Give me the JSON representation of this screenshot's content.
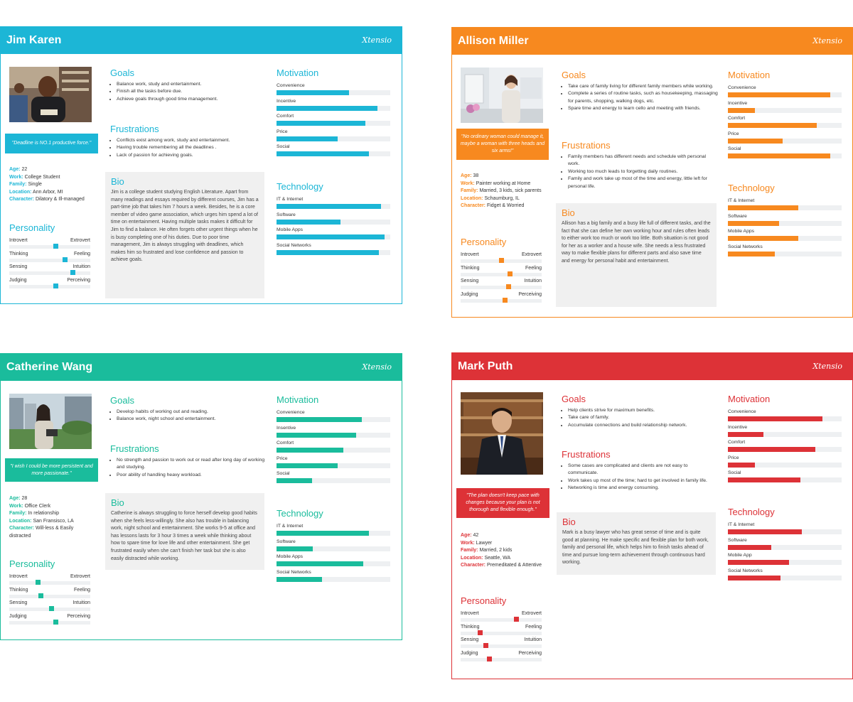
{
  "personas": [
    {
      "name": "Jim Karen",
      "brand": "Xtensio",
      "color": "#1cb6d6",
      "quote": "\"Deadline is NO.1 productive force.\"",
      "info": [
        {
          "k": "Age:",
          "v": " 22"
        },
        {
          "k": "Work:",
          "v": " College Student"
        },
        {
          "k": "Family:",
          "v": " Single"
        },
        {
          "k": "Location:",
          "v": " Ann Arbor, MI"
        },
        {
          "k": "Character:",
          "v": " Dilatory & Ill-managed"
        }
      ],
      "personality_title": "Personality",
      "personality": [
        {
          "left": "Introvert",
          "right": "Extrovert",
          "value": 0.58
        },
        {
          "left": "Thinking",
          "right": "Feeling",
          "value": 0.7
        },
        {
          "left": "Sensing",
          "right": "Intuition",
          "value": 0.8
        },
        {
          "left": "Judging",
          "right": "Perceiving",
          "value": 0.58
        }
      ],
      "goals_title": "Goals",
      "goals": [
        "Balance work, study and entertainment.",
        "Finish all the tasks before due.",
        "Achieve goals through good time management."
      ],
      "frustrations_title": "Frustrations",
      "frustrations": [
        "Conflicts exist among work, study and entertainment.",
        "Having trouble remembering all the deadlines .",
        "Lack of passion for achieving goals."
      ],
      "bio_title": "Bio",
      "bio": "Jim is a college student studying English Literature. Apart from many readings and essays required by different courses, Jim has a part-time job that takes him 7 hours a week. Besides, he is a core member of video game association, which urges him spend a lot of time on entertainment. Having multiple tasks makes it difficult for Jim to find a balance. He often forgets other urgent things when he is busy completing one of his duties. Due to poor time management, Jim is always struggling with deadlines, which makes him so frustrated and lose confidence and passion to achieve goals.",
      "motivation_title": "Motivation",
      "motivation": [
        {
          "label": "Convenience",
          "value": 0.64
        },
        {
          "label": "Incentive",
          "value": 0.89
        },
        {
          "label": "Comfort",
          "value": 0.78
        },
        {
          "label": "Price",
          "value": 0.54
        },
        {
          "label": "Social",
          "value": 0.81
        }
      ],
      "technology_title": "Technology",
      "technology": [
        {
          "label": "IT & Internet",
          "value": 0.92
        },
        {
          "label": "Software",
          "value": 0.56
        },
        {
          "label": "Mobile Apps",
          "value": 0.95
        },
        {
          "label": "Social Networks",
          "value": 0.9
        }
      ]
    },
    {
      "name": "Allison Miller",
      "brand": "Xtensio",
      "color": "#f7891f",
      "quote": "\"No ordinary woman could manage it, maybe a woman with three heads and six arms!\"",
      "info": [
        {
          "k": "Age:",
          "v": " 38"
        },
        {
          "k": "Work:",
          "v": " Painter working at Home"
        },
        {
          "k": "Family:",
          "v": " Married, 3 kids, sick parents"
        },
        {
          "k": "Location:",
          "v": " Schaumburg, IL"
        },
        {
          "k": "Character:",
          "v": " Fidget & Worried"
        }
      ],
      "personality_title": "Personality",
      "personality": [
        {
          "left": "Introvert",
          "right": "Extrovert",
          "value": 0.5
        },
        {
          "left": "Thinking",
          "right": "Feeling",
          "value": 0.62
        },
        {
          "left": "Sensing",
          "right": "Intuition",
          "value": 0.6
        },
        {
          "left": "Judging",
          "right": "Perceiving",
          "value": 0.55
        }
      ],
      "goals_title": "Goals",
      "goals": [
        "Take care of family living for different family members while working.",
        "Complete a series of routine tasks, such as housekeeping, massaging for parents, shopping, walking dogs, etc.",
        "Spare time and energy to learn cello and meeting with friends."
      ],
      "frustrations_title": "Frustrations",
      "frustrations": [
        "Family members has different needs and schedule with personal work.",
        "Working too much leads to forgetting daily routines.",
        "Family and work take up most of the time and energy, little left for personal life."
      ],
      "bio_title": "Bio",
      "bio": "Allison has a big family and a busy life full of different tasks, and the fact that she can define her own working hour and rules often leads to either work too much or work too little. Both situation is not good for her as a worker and a house wife. She needs a less frustrated way to make flexible plans for different parts and also save time and energy for personal habit and entertainment.",
      "motivation_title": "Motivation",
      "motivation": [
        {
          "label": "Convenience",
          "value": 0.9
        },
        {
          "label": "Incentive",
          "value": 0.24
        },
        {
          "label": "Comfort",
          "value": 0.78
        },
        {
          "label": "Price",
          "value": 0.48
        },
        {
          "label": "Social",
          "value": 0.9
        }
      ],
      "technology_title": "Technology",
      "technology": [
        {
          "label": "IT & Internet",
          "value": 0.62
        },
        {
          "label": "Software",
          "value": 0.45
        },
        {
          "label": "Mobile Apps",
          "value": 0.62
        },
        {
          "label": "Social Networks",
          "value": 0.41
        }
      ]
    },
    {
      "name": "Catherine Wang",
      "brand": "Xtensio",
      "color": "#1abc9c",
      "quote": "\"I wish I could be more persistent and more passionate.\"",
      "info": [
        {
          "k": "Age:",
          "v": " 28"
        },
        {
          "k": "Work:",
          "v": " Office Clerk"
        },
        {
          "k": "Family:",
          "v": " In relationship"
        },
        {
          "k": "Location:",
          "v": " San Fransisco, LA"
        },
        {
          "k": "Character:",
          "v": " Will-less & Easily distracted"
        }
      ],
      "personality_title": "Personality",
      "personality": [
        {
          "left": "Introvert",
          "right": "Extrovert",
          "value": 0.35
        },
        {
          "left": "Thinking",
          "right": "Feeling",
          "value": 0.38
        },
        {
          "left": "Sensing",
          "right": "Intuition",
          "value": 0.52
        },
        {
          "left": "Judging",
          "right": "Perceiving",
          "value": 0.58
        }
      ],
      "goals_title": "Goals",
      "goals": [
        "Develop habits of working out and reading.",
        "Balance work, night school and entertainment."
      ],
      "frustrations_title": "Frustrations",
      "frustrations": [
        "No strength and passion to work out or read after long day of working and studying.",
        "Poor ability of handling heavy workload."
      ],
      "bio_title": "Bio",
      "bio": "Catherine is always struggling to force herself develop good habits when she feels less-willingly. She also has trouble in balancing work, night school and entertainment. She works 9-5 at office and has lessons lasts for 3 hour 3 times a week while thinking about how to spare time for love life and other entertainment. She get frustrated easily when she can't finish her task but she is also easily distracted while working.",
      "motivation_title": "Motivation",
      "motivation": [
        {
          "label": "Convenience",
          "value": 0.75
        },
        {
          "label": "Insentive",
          "value": 0.7
        },
        {
          "label": "Comfort",
          "value": 0.59
        },
        {
          "label": "Price",
          "value": 0.54
        },
        {
          "label": "Social",
          "value": 0.31
        }
      ],
      "technology_title": "Technology",
      "technology": [
        {
          "label": "IT & Internet",
          "value": 0.81
        },
        {
          "label": "Software",
          "value": 0.32
        },
        {
          "label": "Mobile Apps",
          "value": 0.76
        },
        {
          "label": "Social Networks",
          "value": 0.4
        }
      ]
    },
    {
      "name": "Mark Puth",
      "brand": "Xtensio",
      "color": "#dd3237",
      "quote": "\"The plan doesn't keep pace with changes because your plan is not thorough and flexible enough.\"",
      "info": [
        {
          "k": "Age:",
          "v": " 42"
        },
        {
          "k": "Work:",
          "v": " Lawyer"
        },
        {
          "k": "Family:",
          "v": " Married, 2 kids"
        },
        {
          "k": "Location:",
          "v": " Seattle, WA"
        },
        {
          "k": "Character:",
          "v": " Premeditated & Attentive"
        }
      ],
      "personality_title": "Personality",
      "personality": [
        {
          "left": "Introvert",
          "right": "Extrovert",
          "value": 0.7
        },
        {
          "left": "Thinking",
          "right": "Feeling",
          "value": 0.22
        },
        {
          "left": "Sensing",
          "right": "Intuition",
          "value": 0.3
        },
        {
          "left": "Judging",
          "right": "Perceiving",
          "value": 0.35
        }
      ],
      "goals_title": "Goals",
      "goals": [
        "Help clients strive for maximum benefits.",
        "Take care of family.",
        "Accumulate connections and build relationship network."
      ],
      "frustrations_title": "Frustrations",
      "frustrations": [
        "Some cases are complicated and clients are not easy to communicate.",
        "Work takes up most of the time; hard to get involved in family life.",
        "Networking is time and energy consuming."
      ],
      "bio_title": "Bio",
      "bio": "Mark is a busy lawyer who has great sense of time and is quite good at planning. He make specific and flexible plan for both work, family and personal life, which helps him to finish tasks ahead of time and pursue long-term achievement through continuous hard working.",
      "motivation_title": "Motivation",
      "motivation": [
        {
          "label": "Convenience",
          "value": 0.83
        },
        {
          "label": "Incentive",
          "value": 0.31
        },
        {
          "label": "Comfort",
          "value": 0.77
        },
        {
          "label": "Price",
          "value": 0.24
        },
        {
          "label": "Social",
          "value": 0.64
        }
      ],
      "technology_title": "Technology",
      "technology": [
        {
          "label": "IT & Internet",
          "value": 0.65
        },
        {
          "label": "Software",
          "value": 0.38
        },
        {
          "label": "Mobile App",
          "value": 0.54
        },
        {
          "label": "Social Networks",
          "value": 0.46
        }
      ]
    }
  ]
}
